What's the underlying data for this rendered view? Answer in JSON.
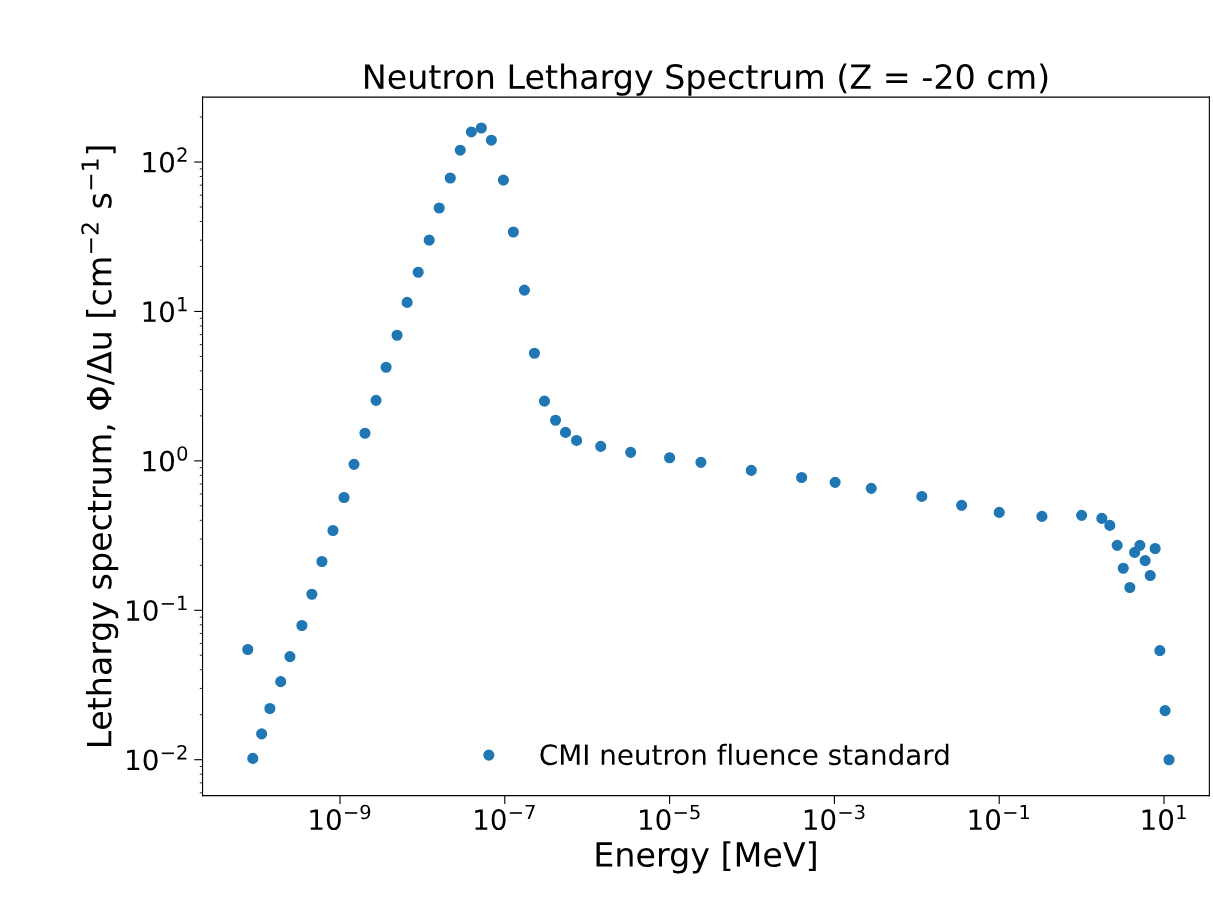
{
  "chart_data": {
    "type": "scatter",
    "title": "Neutron Lethargy Spectrum (Z = -20 cm)",
    "xlabel": "Energy [MeV]",
    "ylabel": "Lethargy spectrum, Φ/Δu [cm$^{−2}$ s$^{−1}$]",
    "log": "xy",
    "marker": "circle",
    "legend": "bottom",
    "grid": false,
    "xlim": [
      2.15e-11,
      35.5
    ],
    "ylim": [
      0.00575,
      272
    ],
    "xticks": [
      {
        "value": 1e-09,
        "label": "10$^{−9}$"
      },
      {
        "value": 1e-07,
        "label": "10$^{−7}$"
      },
      {
        "value": 1e-05,
        "label": "10$^{−5}$"
      },
      {
        "value": 0.001,
        "label": "10$^{−3}$"
      },
      {
        "value": 0.1,
        "label": "10$^{−1}$"
      },
      {
        "value": 10,
        "label": "10$^{1}$"
      }
    ],
    "yticks": [
      {
        "value": 0.01,
        "label": "10$^{−2}$"
      },
      {
        "value": 0.1,
        "label": "10$^{−1}$"
      },
      {
        "value": 1,
        "label": "10$^{0}$"
      },
      {
        "value": 10,
        "label": "10$^{1}$"
      },
      {
        "value": 100,
        "label": "10$^{2}$"
      }
    ],
    "series": [
      {
        "name": "CMI neutron fluence standard",
        "color": "#1f77b4",
        "x": [
          7.6e-11,
          8.75e-11,
          1.12e-10,
          1.41e-10,
          1.91e-10,
          2.47e-10,
          3.45e-10,
          4.56e-10,
          6.04e-10,
          8.22e-10,
          1.12e-09,
          1.48e-09,
          2.01e-09,
          2.74e-09,
          3.63e-09,
          4.93e-09,
          6.53e-09,
          8.89e-09,
          1.21e-08,
          1.6e-08,
          2.18e-08,
          2.88e-08,
          3.93e-08,
          5.19e-08,
          6.87e-08,
          9.62e-08,
          1.27e-07,
          1.73e-07,
          2.29e-07,
          3.03e-07,
          4.13e-07,
          5.46e-07,
          7.43e-07,
          1.46e-06,
          3.37e-06,
          1e-05,
          2.4e-05,
          9.8e-05,
          0.0004,
          0.00102,
          0.0028,
          0.0115,
          0.035,
          0.1,
          0.33,
          1.0,
          1.76,
          2.2,
          2.7,
          3.2,
          3.85,
          4.4,
          5.1,
          5.9,
          6.8,
          7.8,
          8.9,
          10.3,
          11.5
        ],
        "values": [
          0.0546,
          0.0102,
          0.0149,
          0.022,
          0.0333,
          0.049,
          0.0791,
          0.128,
          0.212,
          0.342,
          0.569,
          0.948,
          1.53,
          2.54,
          4.23,
          6.93,
          11.5,
          18.3,
          30.0,
          49.2,
          78.2,
          120,
          159,
          169,
          140,
          75.7,
          34.0,
          13.9,
          5.25,
          2.51,
          1.87,
          1.55,
          1.37,
          1.25,
          1.14,
          1.05,
          0.977,
          0.863,
          0.774,
          0.718,
          0.655,
          0.578,
          0.504,
          0.452,
          0.425,
          0.432,
          0.412,
          0.37,
          0.272,
          0.191,
          0.142,
          0.244,
          0.272,
          0.215,
          0.171,
          0.259,
          0.0537,
          0.0213,
          0.01
        ]
      }
    ]
  }
}
